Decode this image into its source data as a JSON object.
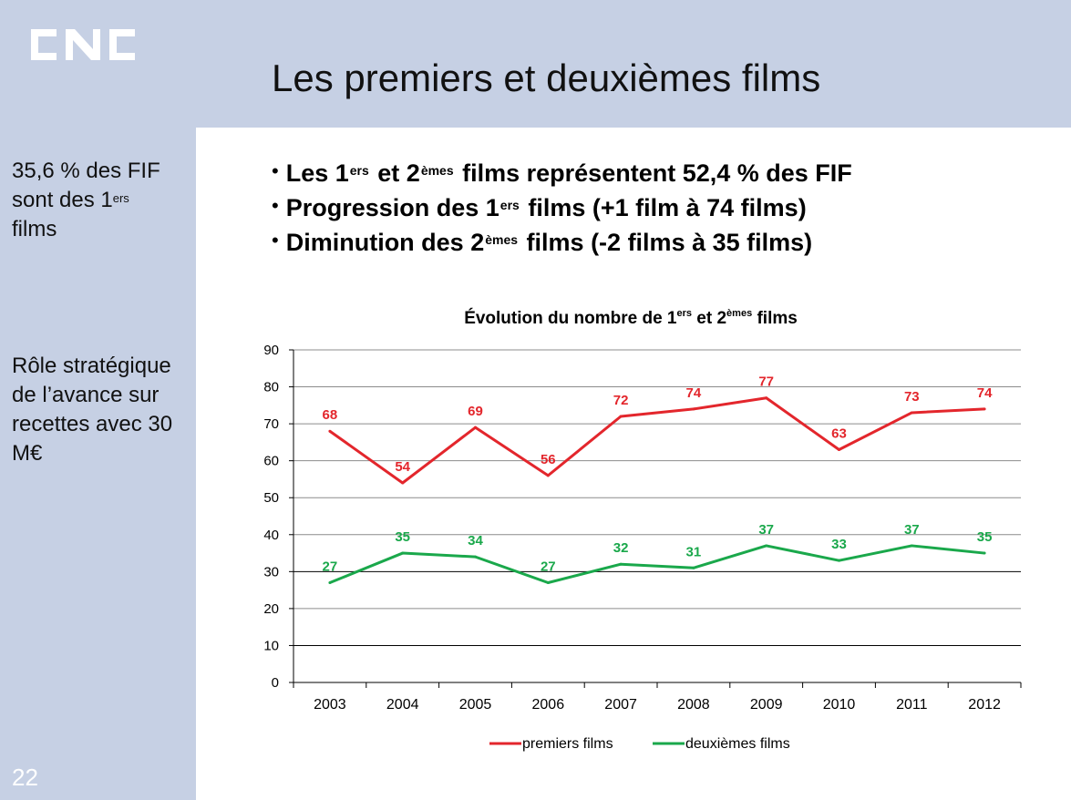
{
  "header": {
    "logo_text": "CNC",
    "title": "Les premiers et deuxièmes films"
  },
  "sidebar": {
    "note1_pre": "35,6 % des FIF sont des 1",
    "note1_sup": "ers",
    "note1_post": "films",
    "note2": "Rôle stratégique de l’avance sur recettes avec 30 M€",
    "page_number": "22"
  },
  "bullets": [
    {
      "b1": "Les 1",
      "s1": "ers",
      "b2": " et 2",
      "s2": "èmes",
      "b3": " films représentent 52,4 % des FIF"
    },
    {
      "b1": "Progression des 1",
      "s1": "ers",
      "b2": " films (+1 film à 74 films)",
      "s2": "",
      "b3": ""
    },
    {
      "b1": "Diminution des 2",
      "s1": "èmes",
      "b2": " films (-2 films à 35 films)",
      "s2": "",
      "b3": ""
    }
  ],
  "bullet_symbol": "•",
  "chart_data": {
    "type": "line",
    "title_parts": [
      "Évolution du nombre de 1",
      "ers",
      " et 2",
      "èmes",
      " films"
    ],
    "categories": [
      "2003",
      "2004",
      "2005",
      "2006",
      "2007",
      "2008",
      "2009",
      "2010",
      "2011",
      "2012"
    ],
    "ylim": [
      0,
      90
    ],
    "yticks": [
      0,
      10,
      20,
      30,
      40,
      50,
      60,
      70,
      80,
      90
    ],
    "grid": true,
    "legend_position": "bottom",
    "series": [
      {
        "name": "premiers films",
        "color": "#e3262c",
        "values": [
          68,
          54,
          69,
          56,
          72,
          74,
          77,
          63,
          73,
          74
        ]
      },
      {
        "name": "deuxièmes films",
        "color": "#1aa84b",
        "values": [
          27,
          35,
          34,
          27,
          32,
          31,
          37,
          33,
          37,
          35
        ]
      }
    ]
  }
}
